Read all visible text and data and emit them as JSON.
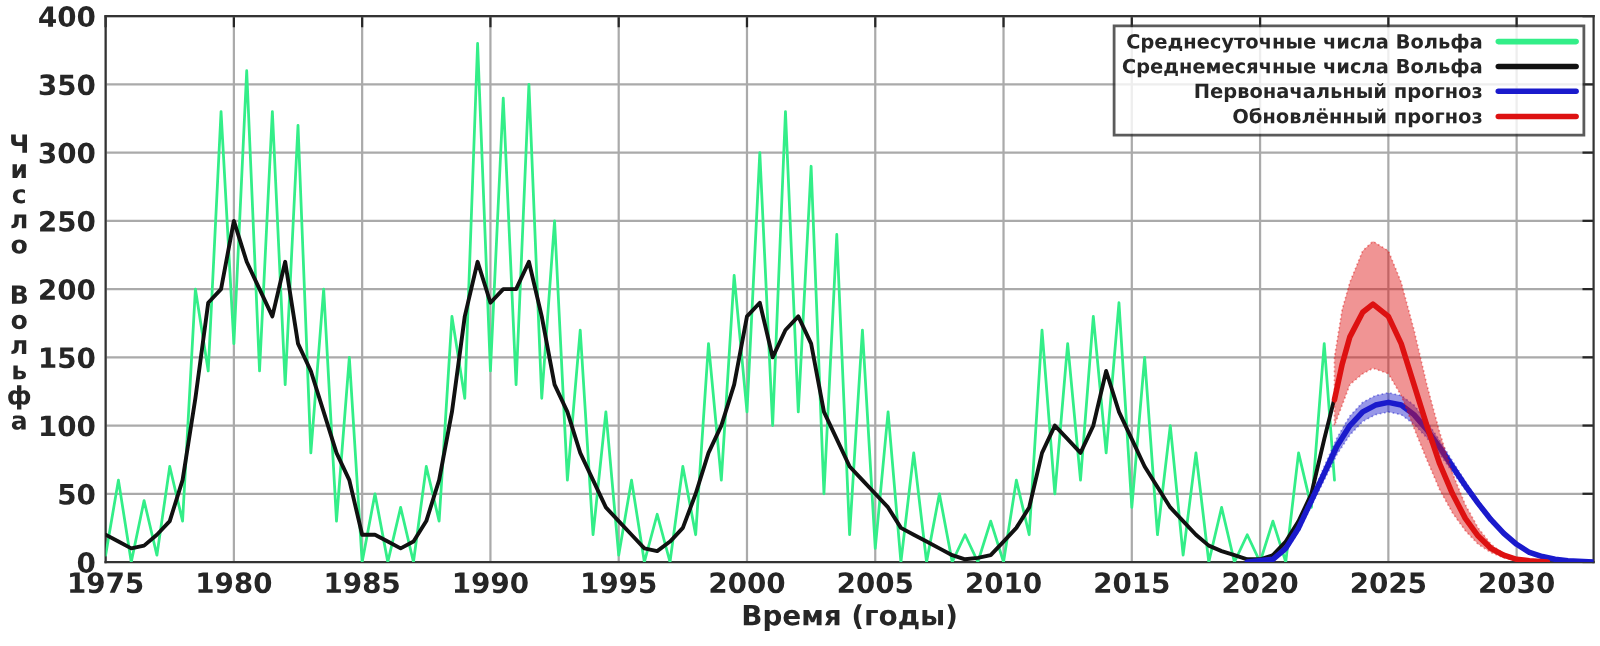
{
  "chart_data": {
    "type": "line",
    "xlabel": "Время (годы)",
    "ylabel": "Число Вольфа",
    "xlim": [
      1975,
      2033
    ],
    "ylim": [
      0,
      400
    ],
    "xticks": [
      1975,
      1980,
      1985,
      1990,
      1995,
      2000,
      2005,
      2010,
      2015,
      2020,
      2025,
      2030
    ],
    "yticks": [
      0,
      50,
      100,
      150,
      200,
      250,
      300,
      350,
      400
    ],
    "grid": true,
    "legend": "top right",
    "marker": "none",
    "line_style": "solid",
    "series": [
      {
        "name": "Среднесуточные числа Вольфа",
        "color": "#33ee88",
        "x": [
          1975.0,
          1975.5,
          1976.0,
          1976.5,
          1977.0,
          1977.5,
          1978.0,
          1978.5,
          1979.0,
          1979.5,
          1980.0,
          1980.5,
          1981.0,
          1981.5,
          1982.0,
          1982.5,
          1983.0,
          1983.5,
          1984.0,
          1984.5,
          1985.0,
          1985.5,
          1986.0,
          1986.5,
          1987.0,
          1987.5,
          1988.0,
          1988.5,
          1989.0,
          1989.5,
          1990.0,
          1990.5,
          1991.0,
          1991.5,
          1992.0,
          1992.5,
          1993.0,
          1993.5,
          1994.0,
          1994.5,
          1995.0,
          1995.5,
          1996.0,
          1996.5,
          1997.0,
          1997.5,
          1998.0,
          1998.5,
          1999.0,
          1999.5,
          2000.0,
          2000.5,
          2001.0,
          2001.5,
          2002.0,
          2002.5,
          2003.0,
          2003.5,
          2004.0,
          2004.5,
          2005.0,
          2005.5,
          2006.0,
          2006.5,
          2007.0,
          2007.5,
          2008.0,
          2008.5,
          2009.0,
          2009.5,
          2010.0,
          2010.5,
          2011.0,
          2011.5,
          2012.0,
          2012.5,
          2013.0,
          2013.5,
          2014.0,
          2014.5,
          2015.0,
          2015.5,
          2016.0,
          2016.5,
          2017.0,
          2017.5,
          2018.0,
          2018.5,
          2019.0,
          2019.5,
          2020.0,
          2020.5,
          2021.0,
          2021.5,
          2022.0,
          2022.5,
          2022.9
        ],
        "values": [
          5,
          60,
          0,
          45,
          5,
          70,
          30,
          200,
          140,
          330,
          160,
          360,
          140,
          330,
          130,
          320,
          80,
          200,
          30,
          150,
          0,
          50,
          0,
          40,
          0,
          70,
          30,
          180,
          120,
          380,
          140,
          340,
          130,
          350,
          120,
          250,
          60,
          170,
          20,
          110,
          5,
          60,
          0,
          35,
          0,
          70,
          20,
          160,
          60,
          210,
          110,
          300,
          100,
          330,
          110,
          290,
          50,
          240,
          20,
          170,
          10,
          110,
          0,
          80,
          0,
          50,
          0,
          20,
          0,
          30,
          0,
          60,
          20,
          170,
          50,
          160,
          60,
          180,
          80,
          190,
          40,
          150,
          20,
          100,
          5,
          80,
          0,
          40,
          0,
          20,
          0,
          30,
          0,
          80,
          40,
          160,
          60
        ]
      },
      {
        "name": "Среднемесячные числа Вольфа",
        "color": "#111111",
        "x": [
          1975.0,
          1975.5,
          1976.0,
          1976.5,
          1977.0,
          1977.5,
          1978.0,
          1978.5,
          1979.0,
          1979.5,
          1980.0,
          1980.5,
          1981.0,
          1981.5,
          1982.0,
          1982.5,
          1983.0,
          1983.5,
          1984.0,
          1984.5,
          1985.0,
          1985.5,
          1986.0,
          1986.5,
          1987.0,
          1987.5,
          1988.0,
          1988.5,
          1989.0,
          1989.5,
          1990.0,
          1990.5,
          1991.0,
          1991.5,
          1992.0,
          1992.5,
          1993.0,
          1993.5,
          1994.0,
          1994.5,
          1995.0,
          1995.5,
          1996.0,
          1996.5,
          1997.0,
          1997.5,
          1998.0,
          1998.5,
          1999.0,
          1999.5,
          2000.0,
          2000.5,
          2001.0,
          2001.5,
          2002.0,
          2002.5,
          2003.0,
          2003.5,
          2004.0,
          2004.5,
          2005.0,
          2005.5,
          2006.0,
          2006.5,
          2007.0,
          2007.5,
          2008.0,
          2008.5,
          2009.0,
          2009.5,
          2010.0,
          2010.5,
          2011.0,
          2011.5,
          2012.0,
          2012.5,
          2013.0,
          2013.5,
          2014.0,
          2014.5,
          2015.0,
          2015.5,
          2016.0,
          2016.5,
          2017.0,
          2017.5,
          2018.0,
          2018.5,
          2019.0,
          2019.5,
          2020.0,
          2020.5,
          2021.0,
          2021.5,
          2022.0,
          2022.5,
          2022.9
        ],
        "values": [
          20,
          15,
          10,
          12,
          20,
          30,
          60,
          120,
          190,
          200,
          250,
          220,
          200,
          180,
          220,
          160,
          140,
          110,
          80,
          60,
          20,
          20,
          15,
          10,
          15,
          30,
          60,
          110,
          180,
          220,
          190,
          200,
          200,
          220,
          180,
          130,
          110,
          80,
          60,
          40,
          30,
          20,
          10,
          8,
          15,
          25,
          50,
          80,
          100,
          130,
          180,
          190,
          150,
          170,
          180,
          160,
          110,
          90,
          70,
          60,
          50,
          40,
          25,
          20,
          15,
          10,
          5,
          2,
          3,
          5,
          15,
          25,
          40,
          80,
          100,
          90,
          80,
          100,
          140,
          110,
          90,
          70,
          55,
          40,
          30,
          20,
          12,
          8,
          5,
          2,
          2,
          5,
          15,
          30,
          50,
          90,
          120
        ]
      },
      {
        "name": "Первоначальный прогноз",
        "color": "#1a1acc",
        "x": [
          2019.5,
          2020.5,
          2021.0,
          2021.5,
          2022.0,
          2022.5,
          2023.0,
          2023.5,
          2024.0,
          2024.5,
          2025.0,
          2025.5,
          2026.0,
          2026.5,
          2027.0,
          2027.5,
          2028.0,
          2028.5,
          2029.0,
          2029.5,
          2030.0,
          2030.5,
          2031.0,
          2031.5,
          2032.0,
          2033.0
        ],
        "values": [
          0,
          2,
          10,
          25,
          45,
          65,
          85,
          100,
          110,
          115,
          117,
          115,
          108,
          97,
          84,
          70,
          56,
          43,
          31,
          21,
          13,
          7,
          4,
          2,
          1,
          0
        ],
        "lower": [
          0,
          1,
          8,
          22,
          41,
          60,
          79,
          93,
          103,
          108,
          110,
          108,
          101,
          91,
          79,
          66,
          53,
          41,
          29,
          20,
          12,
          6,
          3,
          1,
          0,
          0
        ],
        "upper": [
          0,
          3,
          12,
          28,
          49,
          70,
          91,
          107,
          117,
          122,
          124,
          122,
          115,
          103,
          89,
          74,
          59,
          45,
          33,
          22,
          14,
          8,
          5,
          3,
          2,
          0
        ]
      },
      {
        "name": "Обновлённый прогноз",
        "color": "#dd1111",
        "x": [
          2022.9,
          2023.2,
          2023.5,
          2024.0,
          2024.4,
          2025.0,
          2025.5,
          2026.0,
          2026.5,
          2027.0,
          2027.5,
          2028.0,
          2028.5,
          2029.0,
          2029.5,
          2030.0,
          2030.5,
          2031.2
        ],
        "values": [
          119,
          145,
          165,
          183,
          189,
          180,
          160,
          130,
          100,
          72,
          50,
          32,
          19,
          10,
          5,
          2,
          1,
          0
        ],
        "lower": [
          100,
          115,
          130,
          138,
          142,
          138,
          122,
          98,
          75,
          53,
          36,
          23,
          13,
          7,
          3,
          1,
          0,
          0
        ],
        "upper": [
          150,
          185,
          205,
          228,
          235,
          228,
          205,
          170,
          130,
          95,
          65,
          42,
          25,
          13,
          6,
          3,
          1,
          0
        ]
      }
    ]
  }
}
